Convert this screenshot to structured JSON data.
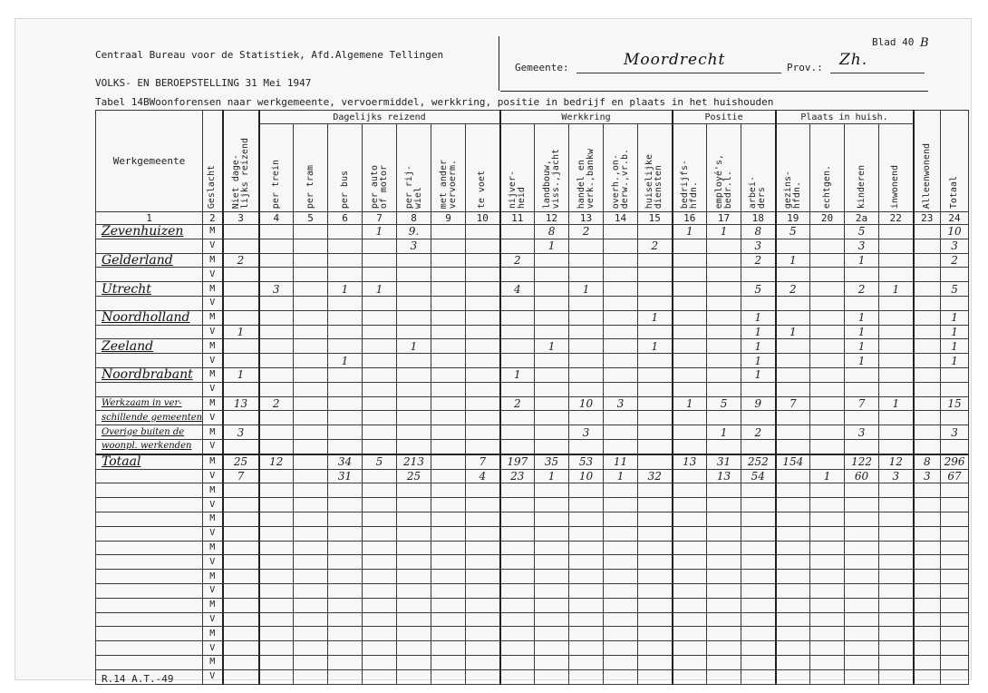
{
  "header": {
    "bureau": "Centraal Bureau voor de Statistiek, Afd.Algemene Tellingen",
    "census": "VOLKS- EN BEROEPSTELLING 31 Mei 1947",
    "table_title": "Tabel 14BWoonforensen naar werkgemeente, vervoermiddel, werkkring, positie in bedrijf en plaats in het huishouden",
    "sheet_label": "Blad 40",
    "sheet_suffix": "B",
    "municipality_label": "Gemeente:",
    "municipality_value": "Moordrecht",
    "province_label": "Prov.:",
    "province_value": "Zh."
  },
  "groups": {
    "daily": "Dagelijks reizend",
    "work": "Werkkring",
    "position": "Positie",
    "household": "Plaats in huish."
  },
  "columns": {
    "werkgemeente": "Werkgemeente",
    "geslacht": "Geslacht",
    "niet_dagelijks": "Niet dage-\nlijks reizend",
    "trein": "per trein",
    "tram": "per tram",
    "bus": "per bus",
    "auto": "per auto\nof motor",
    "rijwiel": "per rij-\nwiel",
    "ander": "met ander\nvervoerm.",
    "voet": "te voet",
    "nijverheid": "nijver-\nheid",
    "landbouw": "landbouw,\nviss.,jacht",
    "handel": "handel en\nverk.,bankw",
    "overheid": "overh.,on-\nderw.,vr.b.",
    "huiselijke": "huiselijke\ndiensten",
    "bedrijfshoofden": "bedrijfs-\nhfdn.",
    "employes": "employé's,\nbedr.l.",
    "arbeiders": "arbei-\nders",
    "gezinshoofden": "gezins-\nhfdn.",
    "echtgen": "echtgen.",
    "kinderen": "kinderen",
    "inwonend": "inwonend",
    "alleenwonend": "Alleenwonend",
    "totaal": "Totaal"
  },
  "column_numbers": [
    "1",
    "2",
    "3",
    "4",
    "5",
    "6",
    "7",
    "8",
    "9",
    "10",
    "11",
    "12",
    "13",
    "14",
    "15",
    "16",
    "17",
    "18",
    "19",
    "20",
    "2a",
    "22",
    "23",
    "24"
  ],
  "rows": [
    {
      "place": "Zevenhuizen",
      "sex": "M",
      "vals": [
        "",
        "",
        "",
        "",
        "1",
        "9.",
        "",
        "",
        "",
        "8",
        "2",
        "",
        "",
        "1",
        "1",
        "8",
        "5",
        "",
        "5",
        "",
        "",
        "10"
      ]
    },
    {
      "place": "",
      "sex": "V",
      "vals": [
        "",
        "",
        "",
        "",
        "",
        "3",
        "",
        "",
        "",
        "1",
        "",
        "",
        "2",
        "",
        "",
        "3",
        "",
        "",
        "3",
        "",
        "",
        "3"
      ]
    },
    {
      "place": "Gelderland",
      "sex": "M",
      "vals": [
        "2",
        "",
        "",
        "",
        "",
        "",
        "",
        "",
        "2",
        "",
        "",
        "",
        "",
        "",
        "",
        "2",
        "1",
        "",
        "1",
        "",
        "",
        "2"
      ]
    },
    {
      "place": "",
      "sex": "V",
      "vals": [
        "",
        "",
        "",
        "",
        "",
        "",
        "",
        "",
        "",
        "",
        "",
        "",
        "",
        "",
        "",
        "",
        "",
        "",
        "",
        "",
        "",
        ""
      ]
    },
    {
      "place": "Utrecht",
      "sex": "M",
      "vals": [
        "",
        "3",
        "",
        "1",
        "1",
        "",
        "",
        "",
        "4",
        "",
        "1",
        "",
        "",
        "",
        "",
        "5",
        "2",
        "",
        "2",
        "1",
        "",
        "5"
      ]
    },
    {
      "place": "",
      "sex": "V",
      "vals": [
        "",
        "",
        "",
        "",
        "",
        "",
        "",
        "",
        "",
        "",
        "",
        "",
        "",
        "",
        "",
        "",
        "",
        "",
        "",
        "",
        "",
        ""
      ]
    },
    {
      "place": "Noordholland",
      "sex": "M",
      "vals": [
        "",
        "",
        "",
        "",
        "",
        "",
        "",
        "",
        "",
        "",
        "",
        "",
        "1",
        "",
        "",
        "1",
        "",
        "",
        "1",
        "",
        "",
        "1"
      ]
    },
    {
      "place": "",
      "sex": "V",
      "vals": [
        "1",
        "",
        "",
        "",
        "",
        "",
        "",
        "",
        "",
        "",
        "",
        "",
        "",
        "",
        "",
        "1",
        "1",
        "",
        "1",
        "",
        "",
        "1"
      ]
    },
    {
      "place": "Zeeland",
      "sex": "M",
      "vals": [
        "",
        "",
        "",
        "",
        "",
        "1",
        "",
        "",
        "",
        "1",
        "",
        "",
        "1",
        "",
        "",
        "1",
        "",
        "",
        "1",
        "",
        "",
        "1"
      ]
    },
    {
      "place": "",
      "sex": "V",
      "vals": [
        "",
        "",
        "",
        "1",
        "",
        "",
        "",
        "",
        "",
        "",
        "",
        "",
        "",
        "",
        "",
        "1",
        "",
        "",
        "1",
        "",
        "",
        "1"
      ]
    },
    {
      "place": "Noordbrabant",
      "sex": "M",
      "vals": [
        "1",
        "",
        "",
        "",
        "",
        "",
        "",
        "",
        "1",
        "",
        "",
        "",
        "",
        "",
        "",
        "1",
        "",
        "",
        "",
        "",
        "",
        ""
      ]
    },
    {
      "place": "",
      "sex": "V",
      "vals": [
        "",
        "",
        "",
        "",
        "",
        "",
        "",
        "",
        "",
        "",
        "",
        "",
        "",
        "",
        "",
        "",
        "",
        "",
        "",
        "",
        "",
        ""
      ]
    },
    {
      "place": "Werkzaam in ver-",
      "sex": "M",
      "small": true,
      "vals": [
        "13",
        "2",
        "",
        "",
        "",
        "",
        "",
        "",
        "2",
        "",
        "10",
        "3",
        "",
        "1",
        "5",
        "9",
        "7",
        "",
        "7",
        "1",
        "",
        "15"
      ]
    },
    {
      "place": "schillende gemeenten",
      "sex": "V",
      "small": true,
      "vals": [
        "",
        "",
        "",
        "",
        "",
        "",
        "",
        "",
        "",
        "",
        "",
        "",
        "",
        "",
        "",
        "",
        "",
        "",
        "",
        "",
        "",
        ""
      ]
    },
    {
      "place": "Overige buiten de",
      "sex": "M",
      "small": true,
      "vals": [
        "3",
        "",
        "",
        "",
        "",
        "",
        "",
        "",
        "",
        "",
        "3",
        "",
        "",
        "",
        "1",
        "2",
        "",
        "",
        "3",
        "",
        "",
        "3"
      ]
    },
    {
      "place": "woonpl. werkenden",
      "sex": "V",
      "small": true,
      "vals": [
        "",
        "",
        "",
        "",
        "",
        "",
        "",
        "",
        "",
        "",
        "",
        "",
        "",
        "",
        "",
        "",
        "",
        "",
        "",
        "",
        "",
        ""
      ]
    },
    {
      "place": "Totaal",
      "sex": "M",
      "total": true,
      "vals": [
        "25",
        "12",
        "",
        "34",
        "5",
        "213",
        "",
        "7",
        "197",
        "35",
        "53",
        "11",
        "",
        "13",
        "31",
        "252",
        "154",
        "",
        "122",
        "12",
        "8",
        "296"
      ]
    },
    {
      "place": "",
      "sex": "V",
      "vals": [
        "7",
        "",
        "",
        "31",
        "",
        "25",
        "",
        "4",
        "23",
        "1",
        "10",
        "1",
        "32",
        "",
        "13",
        "54",
        "",
        "1",
        "60",
        "3",
        "3",
        "67"
      ]
    },
    {
      "place": "",
      "sex": "M",
      "vals": [
        "",
        "",
        "",
        "",
        "",
        "",
        "",
        "",
        "",
        "",
        "",
        "",
        "",
        "",
        "",
        "",
        "",
        "",
        "",
        "",
        "",
        ""
      ]
    },
    {
      "place": "",
      "sex": "V",
      "vals": [
        "",
        "",
        "",
        "",
        "",
        "",
        "",
        "",
        "",
        "",
        "",
        "",
        "",
        "",
        "",
        "",
        "",
        "",
        "",
        "",
        "",
        ""
      ]
    },
    {
      "place": "",
      "sex": "M",
      "vals": [
        "",
        "",
        "",
        "",
        "",
        "",
        "",
        "",
        "",
        "",
        "",
        "",
        "",
        "",
        "",
        "",
        "",
        "",
        "",
        "",
        "",
        ""
      ]
    },
    {
      "place": "",
      "sex": "V",
      "vals": [
        "",
        "",
        "",
        "",
        "",
        "",
        "",
        "",
        "",
        "",
        "",
        "",
        "",
        "",
        "",
        "",
        "",
        "",
        "",
        "",
        "",
        ""
      ]
    },
    {
      "place": "",
      "sex": "M",
      "vals": [
        "",
        "",
        "",
        "",
        "",
        "",
        "",
        "",
        "",
        "",
        "",
        "",
        "",
        "",
        "",
        "",
        "",
        "",
        "",
        "",
        "",
        ""
      ]
    },
    {
      "place": "",
      "sex": "V",
      "vals": [
        "",
        "",
        "",
        "",
        "",
        "",
        "",
        "",
        "",
        "",
        "",
        "",
        "",
        "",
        "",
        "",
        "",
        "",
        "",
        "",
        "",
        ""
      ]
    },
    {
      "place": "",
      "sex": "M",
      "vals": [
        "",
        "",
        "",
        "",
        "",
        "",
        "",
        "",
        "",
        "",
        "",
        "",
        "",
        "",
        "",
        "",
        "",
        "",
        "",
        "",
        "",
        ""
      ]
    },
    {
      "place": "",
      "sex": "V",
      "vals": [
        "",
        "",
        "",
        "",
        "",
        "",
        "",
        "",
        "",
        "",
        "",
        "",
        "",
        "",
        "",
        "",
        "",
        "",
        "",
        "",
        "",
        ""
      ]
    },
    {
      "place": "",
      "sex": "M",
      "vals": [
        "",
        "",
        "",
        "",
        "",
        "",
        "",
        "",
        "",
        "",
        "",
        "",
        "",
        "",
        "",
        "",
        "",
        "",
        "",
        "",
        "",
        ""
      ]
    },
    {
      "place": "",
      "sex": "V",
      "vals": [
        "",
        "",
        "",
        "",
        "",
        "",
        "",
        "",
        "",
        "",
        "",
        "",
        "",
        "",
        "",
        "",
        "",
        "",
        "",
        "",
        "",
        ""
      ]
    },
    {
      "place": "",
      "sex": "M",
      "vals": [
        "",
        "",
        "",
        "",
        "",
        "",
        "",
        "",
        "",
        "",
        "",
        "",
        "",
        "",
        "",
        "",
        "",
        "",
        "",
        "",
        "",
        ""
      ]
    },
    {
      "place": "",
      "sex": "V",
      "vals": [
        "",
        "",
        "",
        "",
        "",
        "",
        "",
        "",
        "",
        "",
        "",
        "",
        "",
        "",
        "",
        "",
        "",
        "",
        "",
        "",
        "",
        ""
      ]
    },
    {
      "place": "",
      "sex": "M",
      "vals": [
        "",
        "",
        "",
        "",
        "",
        "",
        "",
        "",
        "",
        "",
        "",
        "",
        "",
        "",
        "",
        "",
        "",
        "",
        "",
        "",
        "",
        ""
      ]
    },
    {
      "place": "",
      "sex": "V",
      "vals": [
        "",
        "",
        "",
        "",
        "",
        "",
        "",
        "",
        "",
        "",
        "",
        "",
        "",
        "",
        "",
        "",
        "",
        "",
        "",
        "",
        "",
        ""
      ]
    }
  ],
  "footer": "R.14 A.T.-49"
}
